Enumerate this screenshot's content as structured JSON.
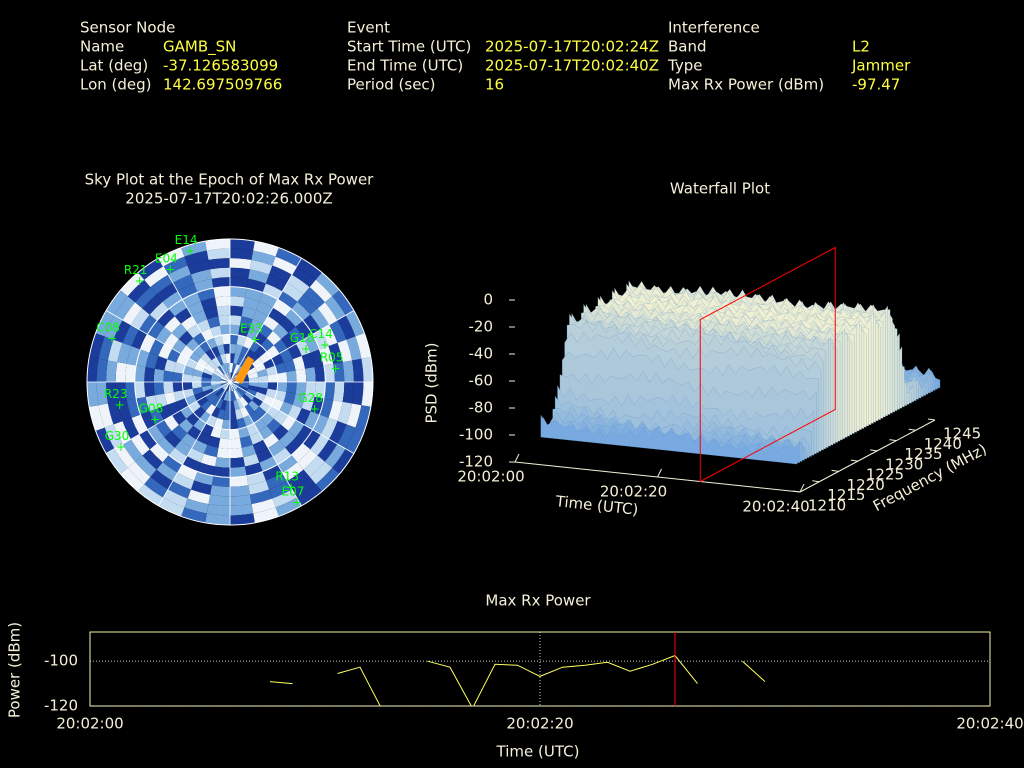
{
  "header": {
    "columns": [
      {
        "title": "Sensor Node",
        "rows": [
          {
            "label": "Name",
            "value": "GAMB_SN"
          },
          {
            "label": "Lat (deg)",
            "value": "-37.126583099"
          },
          {
            "label": "Lon (deg)",
            "value": "142.697509766"
          }
        ]
      },
      {
        "title": "Event",
        "rows": [
          {
            "label": "Start Time (UTC)",
            "value": "2025-07-17T20:02:24Z"
          },
          {
            "label": "End Time (UTC)",
            "value": "2025-07-17T20:02:40Z"
          },
          {
            "label": "Period (sec)",
            "value": "16"
          }
        ]
      },
      {
        "title": "Interference",
        "rows": [
          {
            "label": "Band",
            "value": "L2"
          },
          {
            "label": "Type",
            "value": "Jammer"
          },
          {
            "label": "Max Rx Power (dBm)",
            "value": "-97.47"
          }
        ]
      }
    ]
  },
  "chart_data": [
    {
      "type": "polar_scatter",
      "title": "Sky Plot at the Epoch of Max Rx Power",
      "subtitle": "2025-07-17T20:02:26.000Z",
      "color": "#00ff00",
      "satellites": [
        {
          "name": "E14",
          "azimuth": 343,
          "elevation": 4
        },
        {
          "name": "R21",
          "azimuth": 318,
          "elevation": 5
        },
        {
          "name": "E04",
          "azimuth": 332,
          "elevation": 10
        },
        {
          "name": "E33",
          "azimuth": 31,
          "elevation": 59
        },
        {
          "name": "C14",
          "azimuth": 69,
          "elevation": 26
        },
        {
          "name": "R05",
          "azimuth": 83,
          "elevation": 23
        },
        {
          "name": "G10",
          "azimuth": 67,
          "elevation": 38
        },
        {
          "name": "G28",
          "azimuth": 108,
          "elevation": 34
        },
        {
          "name": "R13",
          "azimuth": 150,
          "elevation": 13
        },
        {
          "name": "E07",
          "azimuth": 151,
          "elevation": 3
        },
        {
          "name": "R23",
          "azimuth": 258,
          "elevation": 19
        },
        {
          "name": "G08",
          "azimuth": 243,
          "elevation": 37
        },
        {
          "name": "C08",
          "azimuth": 290,
          "elevation": 11
        },
        {
          "name": "G30",
          "azimuth": 239,
          "elevation": 10
        }
      ]
    },
    {
      "type": "surface3d",
      "title": "Waterfall Plot",
      "xlabel": "Time (UTC)",
      "ylabel": "Frequency (MHz)",
      "zlabel": "PSD (dBm)",
      "xlim": [
        0,
        40
      ],
      "xticks": [
        {
          "value": 0,
          "label": "20:02:00"
        },
        {
          "value": 20,
          "label": "20:02:20"
        },
        {
          "value": 40,
          "label": "20:02:40"
        }
      ],
      "ylim": [
        1210,
        1245
      ],
      "yticks": [
        1210,
        1215,
        1220,
        1225,
        1230,
        1235,
        1240,
        1245
      ],
      "zlim": [
        -120,
        0
      ],
      "zticks": [
        -120,
        -100,
        -80,
        -60,
        -40,
        -20,
        0
      ],
      "marker": {
        "x": 26,
        "color": "#ff0000"
      }
    },
    {
      "type": "line",
      "title": "Max Rx Power",
      "xlabel": "Time (UTC)",
      "ylabel": "Power (dBm)",
      "color": "#ffff60",
      "x": [
        0,
        1,
        2,
        3,
        4,
        5,
        6,
        7,
        8,
        9,
        10,
        11,
        12,
        13,
        14,
        15,
        16,
        17,
        18,
        19,
        20,
        21,
        22,
        23,
        24,
        25,
        26,
        27,
        28,
        29,
        30
      ],
      "values": [
        null,
        null,
        null,
        null,
        null,
        null,
        null,
        null,
        -109.1,
        -110,
        null,
        -105.5,
        -102.7,
        -122,
        null,
        -100,
        -102.7,
        -121,
        -101.4,
        -101.8,
        -106.8,
        -102.7,
        -101.8,
        -100.5,
        -104.5,
        -101.4,
        -97.47,
        -110,
        null,
        -100,
        -109.1
      ],
      "xlim": [
        0,
        40
      ],
      "xticks": [
        {
          "value": 0,
          "label": "20:02:00"
        },
        {
          "value": 20,
          "label": "20:02:20"
        },
        {
          "value": 40,
          "label": "20:02:40"
        }
      ],
      "ylim": [
        -120,
        -87
      ],
      "yticks": [
        -120,
        -100
      ],
      "grid": true,
      "marker": {
        "x": 26,
        "color": "#ff0000"
      }
    }
  ]
}
